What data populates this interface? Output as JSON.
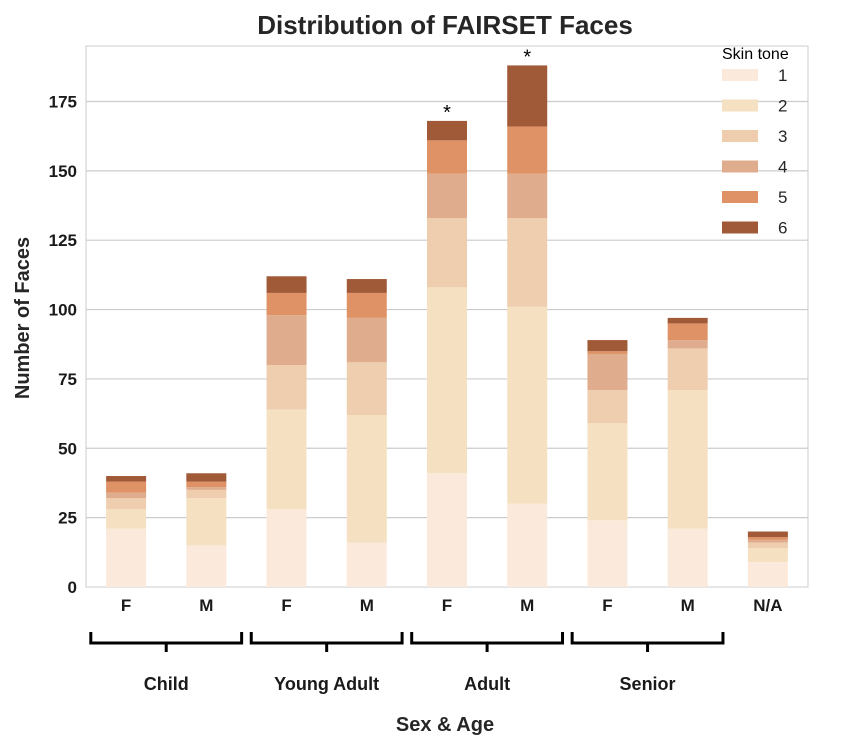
{
  "chart_data": {
    "type": "bar",
    "stacked": true,
    "title": "Distribution of FAIRSET Faces",
    "xlabel": "Sex & Age",
    "ylabel": "Number of Faces",
    "ylim": [
      0,
      195
    ],
    "yticks": [
      0,
      25,
      50,
      75,
      100,
      125,
      150,
      175
    ],
    "grid": true,
    "categories": [
      "F",
      "M",
      "F",
      "M",
      "F",
      "M",
      "F",
      "M",
      "N/A"
    ],
    "groups": [
      {
        "label": "Child",
        "categories": [
          0,
          1
        ]
      },
      {
        "label": "Young Adult",
        "categories": [
          2,
          3
        ]
      },
      {
        "label": "Adult",
        "categories": [
          4,
          5
        ]
      },
      {
        "label": "Senior",
        "categories": [
          6,
          7
        ]
      }
    ],
    "legend": {
      "title": "Skin tone",
      "position": "top-right"
    },
    "series": [
      {
        "name": "1",
        "color": "#fbeadc",
        "values": [
          21,
          15,
          28,
          16,
          41,
          30,
          24,
          21,
          9
        ]
      },
      {
        "name": "2",
        "color": "#f5e1c2",
        "values": [
          7,
          17,
          36,
          46,
          67,
          71,
          35,
          50,
          5
        ]
      },
      {
        "name": "3",
        "color": "#efceb0",
        "values": [
          4,
          3,
          16,
          19,
          25,
          32,
          12,
          15,
          2
        ]
      },
      {
        "name": "4",
        "color": "#dfad8e",
        "values": [
          2,
          1,
          18,
          16,
          16,
          16,
          13,
          3,
          1
        ]
      },
      {
        "name": "5",
        "color": "#de9265",
        "values": [
          4,
          2,
          8,
          9,
          12,
          17,
          1,
          6,
          1
        ]
      },
      {
        "name": "6",
        "color": "#a15a38",
        "values": [
          2,
          3,
          6,
          5,
          7,
          22,
          4,
          2,
          2
        ]
      }
    ],
    "annotations": [
      {
        "category": 4,
        "text": "*"
      },
      {
        "category": 5,
        "text": "*"
      }
    ]
  }
}
